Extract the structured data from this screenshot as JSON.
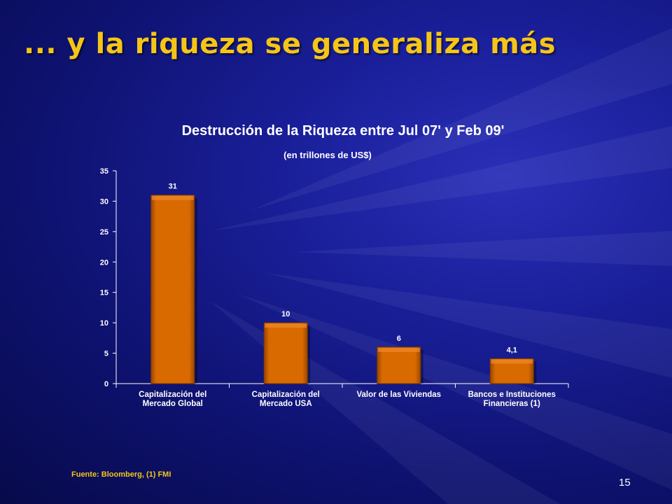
{
  "slide": {
    "title": "... y la riqueza se generaliza más",
    "source": "Fuente:  Bloomberg,  (1) FMI",
    "page_number": "15"
  },
  "colors": {
    "title": "#f5c518",
    "bar": "#d96a00",
    "background": "#12168a"
  },
  "chart_data": {
    "type": "bar",
    "title": "Destrucción de la Riqueza entre Jul 07' y Feb 09'",
    "subtitle": "(en trillones de US$)",
    "categories": [
      [
        "Capitalización del",
        "Mercado Global"
      ],
      [
        "Capitalización del",
        "Mercado USA"
      ],
      [
        "Valor de las Viviendas"
      ],
      [
        "Bancos e Instituciones",
        "Financieras (1)"
      ]
    ],
    "values": [
      31,
      10,
      6,
      4.1
    ],
    "value_labels": [
      "31",
      "10",
      "6",
      "4,1"
    ],
    "ylim": [
      0,
      35
    ],
    "yticks": [
      0,
      5,
      10,
      15,
      20,
      25,
      30,
      35
    ],
    "grid": false,
    "legend": "none"
  }
}
